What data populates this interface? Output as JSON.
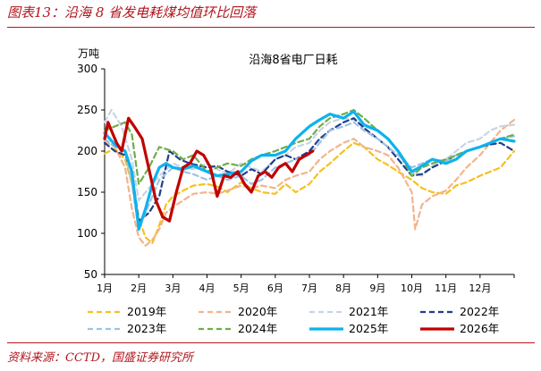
{
  "figure": {
    "title": "图表13：沿海 8 省发电耗煤均值环比回落",
    "source": "资料来源：CCTD，国盛证券研究所"
  },
  "chart_data": {
    "type": "line",
    "title": "沿海8省电厂日耗",
    "ylabel": "万吨",
    "ylim": [
      50,
      300
    ],
    "yticks": [
      50,
      100,
      150,
      200,
      250,
      300
    ],
    "xlim": [
      1,
      13
    ],
    "categories": [
      "1月",
      "2月",
      "3月",
      "4月",
      "5月",
      "6月",
      "7月",
      "8月",
      "9月",
      "10月",
      "11月",
      "12月"
    ],
    "x_unit": "month",
    "grid": false,
    "legend_position": "bottom",
    "series": [
      {
        "name": "2019年",
        "color": "#f5c11f",
        "style": "dashed",
        "width": 2.2,
        "x": [
          1,
          1.3,
          1.6,
          1.8,
          2,
          2.2,
          2.4,
          2.6,
          2.8,
          3,
          3.3,
          3.6,
          4,
          4.3,
          4.6,
          5,
          5.3,
          5.6,
          6,
          6.3,
          6.6,
          7,
          7.3,
          7.6,
          8,
          8.3,
          8.6,
          9,
          9.3,
          9.6,
          10,
          10.3,
          10.6,
          11,
          11.3,
          11.6,
          12,
          12.3,
          12.6,
          13
        ],
        "values": [
          197,
          203,
          190,
          160,
          118,
          95,
          88,
          110,
          135,
          145,
          152,
          158,
          160,
          157,
          150,
          162,
          155,
          150,
          148,
          160,
          150,
          160,
          175,
          185,
          200,
          210,
          205,
          190,
          183,
          175,
          165,
          155,
          150,
          148,
          158,
          162,
          170,
          175,
          180,
          200
        ]
      },
      {
        "name": "2020年",
        "color": "#f2b48c",
        "style": "dashed",
        "width": 2.2,
        "x": [
          1,
          1.3,
          1.6,
          1.8,
          2,
          2.2,
          2.4,
          2.6,
          2.8,
          3,
          3.3,
          3.6,
          4,
          4.3,
          4.6,
          5,
          5.3,
          5.6,
          6,
          6.3,
          6.6,
          7,
          7.3,
          7.6,
          8,
          8.3,
          8.6,
          9,
          9.3,
          9.6,
          10,
          10.1,
          10.3,
          10.6,
          11,
          11.3,
          11.6,
          12,
          12.3,
          12.6,
          13
        ],
        "values": [
          212,
          205,
          180,
          130,
          95,
          85,
          92,
          105,
          125,
          132,
          140,
          148,
          150,
          148,
          152,
          158,
          155,
          158,
          155,
          165,
          170,
          175,
          190,
          200,
          210,
          215,
          205,
          200,
          195,
          180,
          150,
          105,
          135,
          145,
          152,
          165,
          180,
          195,
          210,
          225,
          238
        ]
      },
      {
        "name": "2021年",
        "color": "#c8d4e4",
        "style": "dashed",
        "width": 2.2,
        "x": [
          1,
          1.2,
          1.5,
          1.8,
          2,
          2.3,
          2.6,
          3,
          3.3,
          3.6,
          4,
          4.3,
          4.6,
          5,
          5.3,
          5.6,
          6,
          6.3,
          6.6,
          7,
          7.3,
          7.6,
          8,
          8.3,
          8.6,
          9,
          9.3,
          9.6,
          10,
          10.3,
          10.6,
          11,
          11.3,
          11.6,
          12,
          12.3,
          12.6,
          13
        ],
        "values": [
          235,
          250,
          230,
          190,
          140,
          155,
          170,
          185,
          180,
          178,
          185,
          178,
          172,
          185,
          180,
          175,
          190,
          195,
          205,
          210,
          225,
          235,
          240,
          238,
          230,
          225,
          215,
          200,
          175,
          170,
          182,
          190,
          200,
          210,
          215,
          225,
          230,
          232
        ]
      },
      {
        "name": "2022年",
        "color": "#1f3e8c",
        "style": "dashed",
        "width": 2.2,
        "x": [
          1,
          1.3,
          1.6,
          1.8,
          2,
          2.3,
          2.6,
          2.9,
          3.2,
          3.5,
          4,
          4.3,
          4.6,
          5,
          5.3,
          5.6,
          6,
          6.3,
          6.6,
          7,
          7.3,
          7.6,
          8,
          8.3,
          8.6,
          9,
          9.3,
          9.6,
          10,
          10.3,
          10.6,
          11,
          11.3,
          11.6,
          12,
          12.3,
          12.6,
          13
        ],
        "values": [
          210,
          200,
          195,
          175,
          115,
          125,
          145,
          200,
          190,
          185,
          180,
          182,
          175,
          170,
          178,
          172,
          190,
          195,
          190,
          200,
          215,
          225,
          235,
          240,
          228,
          215,
          205,
          190,
          170,
          172,
          180,
          188,
          195,
          200,
          205,
          208,
          210,
          200
        ]
      },
      {
        "name": "2023年",
        "color": "#9dc3e6",
        "style": "dashed",
        "width": 2.2,
        "x": [
          1,
          1.3,
          1.6,
          1.8,
          2,
          2.3,
          2.6,
          3,
          3.3,
          3.6,
          4,
          4.3,
          4.6,
          5,
          5.3,
          5.6,
          6,
          6.3,
          6.6,
          7,
          7.3,
          7.6,
          8,
          8.3,
          8.6,
          9,
          9.3,
          9.6,
          10,
          10.3,
          10.6,
          11,
          11.3,
          11.6,
          12,
          12.3,
          12.6,
          13
        ],
        "values": [
          215,
          205,
          200,
          160,
          105,
          135,
          165,
          180,
          175,
          172,
          165,
          170,
          165,
          170,
          160,
          165,
          180,
          185,
          190,
          195,
          210,
          225,
          230,
          235,
          225,
          215,
          205,
          195,
          180,
          185,
          190,
          188,
          195,
          200,
          205,
          210,
          215,
          218
        ]
      },
      {
        "name": "2024年",
        "color": "#70ad47",
        "style": "dashed",
        "width": 2.2,
        "x": [
          1,
          1.3,
          1.6,
          1.8,
          2,
          2.3,
          2.6,
          3,
          3.3,
          3.6,
          4,
          4.3,
          4.6,
          5,
          5.3,
          5.6,
          6,
          6.3,
          6.6,
          7,
          7.3,
          7.6,
          8,
          8.3,
          8.6,
          9,
          9.3,
          9.6,
          10,
          10.3,
          10.6,
          11,
          11.3,
          11.6,
          12,
          12.3,
          12.6,
          13
        ],
        "values": [
          225,
          230,
          235,
          220,
          160,
          180,
          205,
          200,
          190,
          195,
          175,
          180,
          185,
          182,
          190,
          195,
          200,
          205,
          210,
          215,
          230,
          240,
          245,
          250,
          240,
          225,
          215,
          200,
          170,
          180,
          185,
          190,
          195,
          200,
          205,
          210,
          215,
          220
        ]
      },
      {
        "name": "2025年",
        "color": "#0db2ee",
        "style": "solid",
        "width": 3.2,
        "x": [
          1,
          1.3,
          1.6,
          1.8,
          2,
          2.2,
          2.4,
          2.6,
          2.8,
          3,
          3.3,
          3.6,
          4,
          4.3,
          4.6,
          5,
          5.3,
          5.6,
          6,
          6.3,
          6.6,
          7,
          7.3,
          7.6,
          8,
          8.3,
          8.6,
          9,
          9.3,
          9.6,
          10,
          10.3,
          10.6,
          11,
          11.3,
          11.6,
          12,
          12.3,
          12.6,
          13
        ],
        "values": [
          222,
          208,
          200,
          175,
          105,
          130,
          160,
          180,
          185,
          180,
          178,
          182,
          175,
          170,
          172,
          175,
          188,
          195,
          195,
          200,
          215,
          230,
          238,
          245,
          240,
          248,
          232,
          225,
          215,
          200,
          175,
          182,
          190,
          185,
          190,
          200,
          205,
          210,
          215,
          212
        ]
      },
      {
        "name": "2026年",
        "color": "#c00000",
        "style": "solid",
        "width": 3.2,
        "x": [
          1,
          1.1,
          1.2,
          1.35,
          1.5,
          1.7,
          1.9,
          2.1,
          2.3,
          2.5,
          2.7,
          2.9,
          3.1,
          3.3,
          3.5,
          3.7,
          3.9,
          4.1,
          4.3,
          4.5,
          4.7,
          4.9,
          5.1,
          5.3,
          5.5,
          5.7,
          5.9,
          6.1,
          6.3,
          6.5,
          6.7,
          6.9,
          7.1
        ],
        "values": [
          215,
          235,
          225,
          210,
          200,
          240,
          228,
          215,
          178,
          140,
          120,
          115,
          150,
          180,
          185,
          200,
          195,
          180,
          145,
          170,
          168,
          175,
          160,
          150,
          170,
          175,
          168,
          180,
          185,
          175,
          190,
          195,
          200
        ]
      }
    ]
  }
}
